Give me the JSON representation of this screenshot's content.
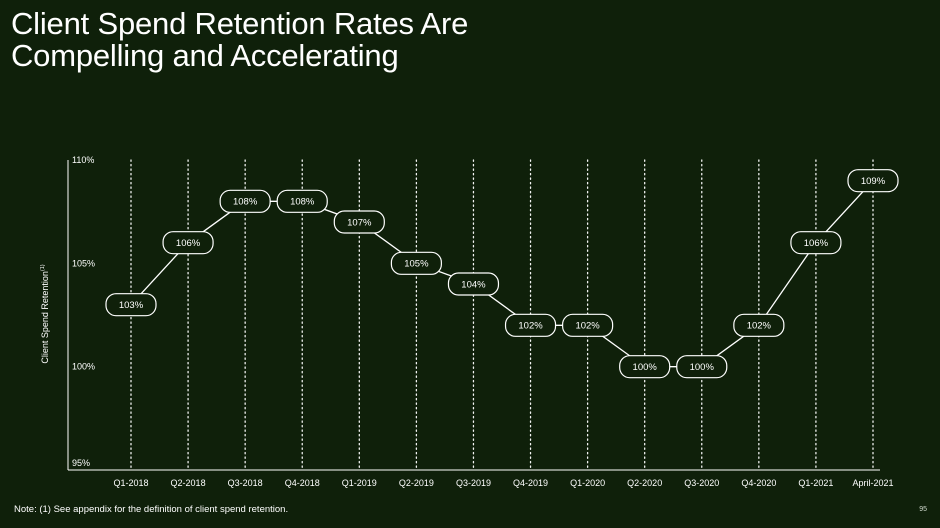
{
  "slide": {
    "title_lines": [
      "Client Spend Retention Rates Are",
      "Compelling and Accelerating"
    ],
    "note": "Note: (1) See appendix for the definition of client spend retention.",
    "page_number": "95"
  },
  "colors": {
    "background": "#0f200a",
    "foreground": "#ffffff",
    "label_fill": "#0f200a"
  },
  "chart_data": {
    "type": "line",
    "categories": [
      "Q1-2018",
      "Q2-2018",
      "Q3-2018",
      "Q4-2018",
      "Q1-2019",
      "Q2-2019",
      "Q3-2019",
      "Q4-2019",
      "Q1-2020",
      "Q2-2020",
      "Q3-2020",
      "Q4-2020",
      "Q1-2021",
      "April-2021"
    ],
    "series": [
      {
        "values": [
          103,
          106,
          108,
          108,
          107,
          105,
          104,
          102,
          102,
          100,
          100,
          102,
          106,
          109
        ]
      }
    ],
    "data_labels": [
      "103%",
      "106%",
      "108%",
      "108%",
      "107%",
      "105%",
      "104%",
      "102%",
      "102%",
      "100%",
      "100%",
      "102%",
      "106%",
      "109%"
    ],
    "ylabel": "Client Spend Retention",
    "ylabel_superscript": "(1)",
    "ylim": [
      95,
      110
    ],
    "yticks": [
      95,
      100,
      105,
      110
    ],
    "ytick_labels": [
      "95%",
      "100%",
      "105%",
      "110%"
    ],
    "grid": "vertical-dotted",
    "legend": "none"
  }
}
